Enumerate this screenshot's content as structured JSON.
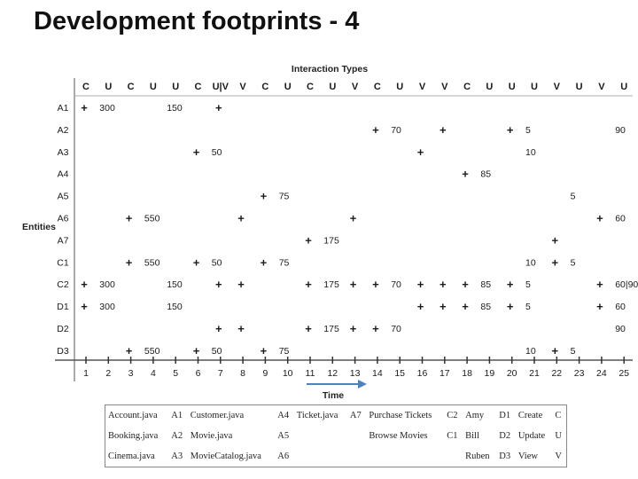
{
  "title": "Development footprints - 4",
  "diagram": {
    "top_label": "Interaction Types",
    "left_label": "Entities",
    "bottom_label": "Time",
    "interaction_types": [
      "C",
      "U",
      "C",
      "U",
      "U",
      "C",
      "U|V",
      "V",
      "C",
      "U",
      "C",
      "U",
      "V",
      "C",
      "U",
      "V",
      "V",
      "C",
      "U",
      "U",
      "U",
      "V",
      "U",
      "V",
      "U"
    ],
    "entities": [
      "A1",
      "A2",
      "A3",
      "A4",
      "A5",
      "A6",
      "A7",
      "C1",
      "C2",
      "D1",
      "D2",
      "D3"
    ],
    "times": [
      "1",
      "2",
      "3",
      "4",
      "5",
      "6",
      "7",
      "8",
      "9",
      "10",
      "11",
      "12",
      "13",
      "14",
      "15",
      "16",
      "17",
      "18",
      "19",
      "20",
      "21",
      "22",
      "23",
      "24",
      "25"
    ],
    "rows": [
      [
        [
          "+"
        ],
        [
          "300"
        ],
        [],
        [],
        [
          "150"
        ],
        [],
        [
          "+"
        ],
        [],
        [],
        [],
        [],
        [],
        [],
        [],
        [],
        [],
        [],
        [],
        [],
        [],
        [],
        [],
        [],
        [],
        []
      ],
      [
        [],
        [],
        [],
        [],
        [],
        [],
        [],
        [],
        [],
        [],
        [],
        [],
        [],
        [
          "+"
        ],
        [
          "70"
        ],
        [],
        [
          "+"
        ],
        [],
        [],
        [
          "+"
        ],
        [
          "5"
        ],
        [],
        [],
        [],
        [
          "90"
        ]
      ],
      [
        [],
        [],
        [],
        [],
        [],
        [
          "+"
        ],
        [
          "50"
        ],
        [],
        [],
        [],
        [],
        [],
        [],
        [],
        [],
        [
          "+"
        ],
        [],
        [],
        [],
        [],
        [
          "10"
        ],
        [],
        [],
        [],
        []
      ],
      [
        [],
        [],
        [],
        [],
        [],
        [],
        [],
        [],
        [],
        [],
        [],
        [],
        [],
        [],
        [],
        [],
        [],
        [
          "+"
        ],
        [
          "85"
        ],
        [],
        [],
        [],
        [],
        [],
        []
      ],
      [
        [],
        [],
        [],
        [],
        [],
        [],
        [],
        [],
        [
          "+"
        ],
        [
          "75"
        ],
        [],
        [],
        [],
        [],
        [],
        [],
        [],
        [],
        [],
        [],
        [],
        [],
        [
          "5"
        ],
        [],
        []
      ],
      [
        [],
        [],
        [
          "+"
        ],
        [
          "550"
        ],
        [],
        [],
        [],
        [
          "+"
        ],
        [],
        [],
        [],
        [],
        [
          "+"
        ],
        [],
        [],
        [],
        [],
        [],
        [],
        [],
        [],
        [],
        [],
        [
          "+"
        ],
        [
          "60"
        ]
      ],
      [
        [],
        [],
        [],
        [],
        [],
        [],
        [],
        [],
        [],
        [],
        [
          "+"
        ],
        [
          "175"
        ],
        [],
        [],
        [],
        [],
        [],
        [],
        [],
        [],
        [],
        [
          "+"
        ],
        [],
        [],
        []
      ],
      [
        [],
        [],
        [
          "+"
        ],
        [
          "550"
        ],
        [],
        [
          "+"
        ],
        [
          "50"
        ],
        [],
        [
          "+"
        ],
        [
          "75"
        ],
        [],
        [],
        [],
        [],
        [],
        [],
        [],
        [],
        [],
        [],
        [
          "10"
        ],
        [
          "+"
        ],
        [
          "5"
        ],
        [],
        []
      ],
      [
        [
          "+"
        ],
        [
          "300"
        ],
        [],
        [],
        [
          "150"
        ],
        [],
        [
          "+"
        ],
        [
          "+"
        ],
        [],
        [],
        [
          "+"
        ],
        [
          "175"
        ],
        [
          "+"
        ],
        [
          "+"
        ],
        [
          "70"
        ],
        [
          "+"
        ],
        [
          "+"
        ],
        [
          "+"
        ],
        [
          "85"
        ],
        [
          "+"
        ],
        [
          "5"
        ],
        [],
        [],
        [
          "+"
        ],
        [
          "60|90"
        ]
      ],
      [
        [
          "+"
        ],
        [
          "300"
        ],
        [],
        [],
        [
          "150"
        ],
        [],
        [],
        [],
        [],
        [],
        [],
        [],
        [],
        [],
        [],
        [
          "+"
        ],
        [
          "+"
        ],
        [
          "+"
        ],
        [
          "85"
        ],
        [
          "+"
        ],
        [
          "5"
        ],
        [],
        [],
        [
          "+"
        ],
        [
          "60"
        ]
      ],
      [
        [],
        [],
        [],
        [],
        [],
        [],
        [
          "+"
        ],
        [
          "+"
        ],
        [],
        [],
        [
          "+"
        ],
        [
          "175"
        ],
        [
          "+"
        ],
        [
          "+"
        ],
        [
          "70"
        ],
        [],
        [],
        [],
        [],
        [],
        [],
        [],
        [],
        [],
        [
          "90"
        ]
      ],
      [
        [],
        [],
        [
          "+"
        ],
        [
          "550"
        ],
        [],
        [
          "+"
        ],
        [
          "50"
        ],
        [],
        [
          "+"
        ],
        [
          "75"
        ],
        [],
        [],
        [],
        [],
        [],
        [],
        [],
        [],
        [],
        [],
        [
          "10"
        ],
        [
          "+"
        ],
        [
          "5"
        ],
        [],
        []
      ]
    ]
  },
  "legend": {
    "rows": [
      [
        "Account.java",
        "A1",
        "Customer.java",
        "A4",
        "Ticket.java",
        "A7",
        "Purchase Tickets",
        "C2",
        "Amy",
        "D1",
        "Create",
        "C"
      ],
      [
        "Booking.java",
        "A2",
        "Movie.java",
        "A5",
        "",
        "",
        "Browse Movies",
        "C1",
        "Bill",
        "D2",
        "Update",
        "U"
      ],
      [
        "Cinema.java",
        "A3",
        "MovieCatalog.java",
        "A6",
        "",
        "",
        "",
        "",
        "Ruben",
        "D3",
        "View",
        "V"
      ]
    ]
  }
}
